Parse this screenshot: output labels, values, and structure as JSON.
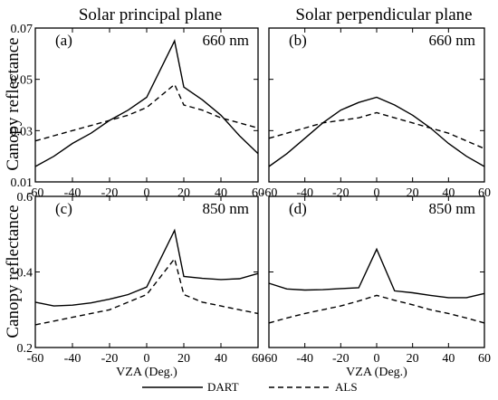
{
  "figure": {
    "column_titles": [
      "Solar principal plane",
      "Solar perpendicular plane"
    ],
    "row_ylabels": [
      "Canopy reflectance",
      "Canopy reflectance"
    ],
    "legend": [
      {
        "label": "DART",
        "style": "solid"
      },
      {
        "label": "ALS",
        "style": "dashed"
      }
    ]
  },
  "chart_data": [
    {
      "type": "line",
      "panel_label": "(a)",
      "wavelength": "660 nm",
      "xlabel": "",
      "ylabel": "Canopy reflectance",
      "xlim": [
        -60,
        60
      ],
      "ylim": [
        0.01,
        0.07
      ],
      "xticks": [
        -60,
        -40,
        -20,
        0,
        20,
        40,
        60
      ],
      "yticks": [
        "0.01",
        "0.03",
        "0.05",
        "0.07"
      ],
      "series": [
        {
          "name": "DART",
          "style": "solid",
          "x": [
            -60,
            -50,
            -40,
            -30,
            -20,
            -10,
            0,
            15,
            20,
            30,
            40,
            50,
            60
          ],
          "y": [
            0.016,
            0.02,
            0.025,
            0.029,
            0.034,
            0.038,
            0.043,
            0.065,
            0.047,
            0.042,
            0.036,
            0.028,
            0.021
          ]
        },
        {
          "name": "ALS",
          "style": "dashed",
          "x": [
            -60,
            -50,
            -40,
            -30,
            -20,
            -10,
            0,
            15,
            20,
            30,
            40,
            50,
            60
          ],
          "y": [
            0.026,
            0.028,
            0.03,
            0.032,
            0.034,
            0.036,
            0.039,
            0.048,
            0.04,
            0.038,
            0.035,
            0.033,
            0.031
          ]
        }
      ]
    },
    {
      "type": "line",
      "panel_label": "(b)",
      "wavelength": "660 nm",
      "xlabel": "",
      "ylabel": "",
      "xlim": [
        -60,
        60
      ],
      "ylim": [
        0.01,
        0.07
      ],
      "xticks": [
        -60,
        -40,
        -20,
        0,
        20,
        40,
        60
      ],
      "yticks": [
        "0.01",
        "0.03",
        "0.05",
        "0.07"
      ],
      "series": [
        {
          "name": "DART",
          "style": "solid",
          "x": [
            -60,
            -50,
            -40,
            -30,
            -20,
            -10,
            0,
            10,
            20,
            30,
            40,
            50,
            60
          ],
          "y": [
            0.016,
            0.021,
            0.027,
            0.033,
            0.038,
            0.041,
            0.043,
            0.04,
            0.036,
            0.031,
            0.025,
            0.02,
            0.016
          ]
        },
        {
          "name": "ALS",
          "style": "dashed",
          "x": [
            -60,
            -50,
            -40,
            -30,
            -20,
            -10,
            0,
            10,
            20,
            30,
            40,
            50,
            60
          ],
          "y": [
            0.027,
            0.029,
            0.031,
            0.033,
            0.034,
            0.035,
            0.037,
            0.035,
            0.033,
            0.031,
            0.029,
            0.026,
            0.023
          ]
        }
      ]
    },
    {
      "type": "line",
      "panel_label": "(c)",
      "wavelength": "850 nm",
      "xlabel": "VZA (Deg.)",
      "ylabel": "Canopy reflectance",
      "xlim": [
        -60,
        60
      ],
      "ylim": [
        0.2,
        0.6
      ],
      "xticks": [
        -60,
        -40,
        -20,
        0,
        20,
        40,
        60
      ],
      "yticks": [
        "0.2",
        "0.4",
        "0.6"
      ],
      "series": [
        {
          "name": "DART",
          "style": "solid",
          "x": [
            -60,
            -50,
            -40,
            -30,
            -20,
            -10,
            0,
            15,
            20,
            30,
            40,
            50,
            60
          ],
          "y": [
            0.32,
            0.31,
            0.312,
            0.318,
            0.328,
            0.34,
            0.36,
            0.51,
            0.388,
            0.383,
            0.38,
            0.382,
            0.396
          ]
        },
        {
          "name": "ALS",
          "style": "dashed",
          "x": [
            -60,
            -50,
            -40,
            -30,
            -20,
            -10,
            0,
            15,
            20,
            30,
            40,
            50,
            60
          ],
          "y": [
            0.26,
            0.27,
            0.28,
            0.29,
            0.3,
            0.32,
            0.34,
            0.435,
            0.34,
            0.32,
            0.31,
            0.3,
            0.29
          ]
        }
      ]
    },
    {
      "type": "line",
      "panel_label": "(d)",
      "wavelength": "850 nm",
      "xlabel": "VZA (Deg.)",
      "ylabel": "",
      "xlim": [
        -60,
        60
      ],
      "ylim": [
        0.2,
        0.6
      ],
      "xticks": [
        -60,
        -40,
        -20,
        0,
        20,
        40,
        60
      ],
      "yticks": [
        "0.2",
        "0.4",
        "0.6"
      ],
      "series": [
        {
          "name": "DART",
          "style": "solid",
          "x": [
            -60,
            -50,
            -40,
            -30,
            -20,
            -10,
            0,
            10,
            20,
            30,
            40,
            50,
            60
          ],
          "y": [
            0.37,
            0.355,
            0.352,
            0.353,
            0.356,
            0.358,
            0.46,
            0.35,
            0.345,
            0.338,
            0.332,
            0.332,
            0.343
          ]
        },
        {
          "name": "ALS",
          "style": "dashed",
          "x": [
            -60,
            -50,
            -40,
            -30,
            -20,
            -10,
            0,
            10,
            20,
            30,
            40,
            50,
            60
          ],
          "y": [
            0.265,
            0.278,
            0.29,
            0.3,
            0.31,
            0.323,
            0.338,
            0.325,
            0.313,
            0.3,
            0.29,
            0.278,
            0.265
          ]
        }
      ]
    }
  ]
}
